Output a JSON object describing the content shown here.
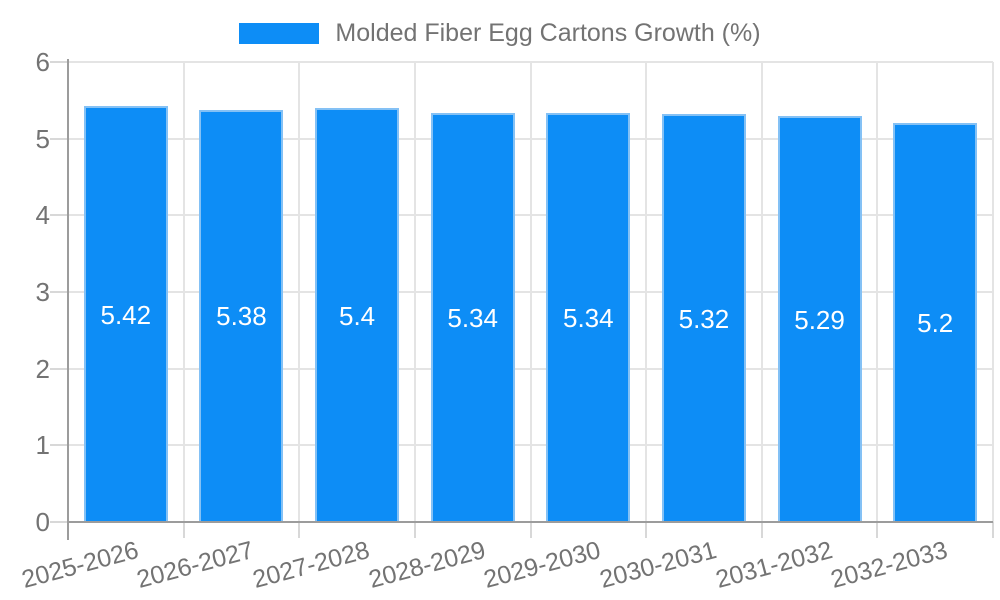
{
  "chart_data": {
    "type": "bar",
    "title": "Molded Fiber Egg Cartons Growth (%)",
    "categories": [
      "2025-2026",
      "2026-2027",
      "2027-2028",
      "2028-2029",
      "2029-2030",
      "2030-2031",
      "2031-2032",
      "2032-2033"
    ],
    "values": [
      5.42,
      5.38,
      5.4,
      5.34,
      5.34,
      5.32,
      5.29,
      5.2
    ],
    "value_labels": [
      "5.42",
      "5.38",
      "5.4",
      "5.34",
      "5.34",
      "5.32",
      "5.29",
      "5.2"
    ],
    "series_name": "Molded Fiber Egg Cartons Growth (%)",
    "xlabel": "",
    "ylabel": "",
    "ylim": [
      0,
      6
    ],
    "yticks": [
      "0",
      "1",
      "2",
      "3",
      "4",
      "5",
      "6"
    ],
    "grid": true,
    "legend_position": "top-center",
    "x_label_rotation_deg": -15,
    "colors": {
      "bar_fill": "#0d8df6",
      "bar_border": "#84c1f5",
      "bar_value_text": "#ffffff",
      "axis_text": "#737373",
      "axis_line": "#9c9c9c",
      "gridline": "#e4e4e4",
      "tick_mark": "#d8d8d8",
      "background": "#ffffff"
    }
  }
}
